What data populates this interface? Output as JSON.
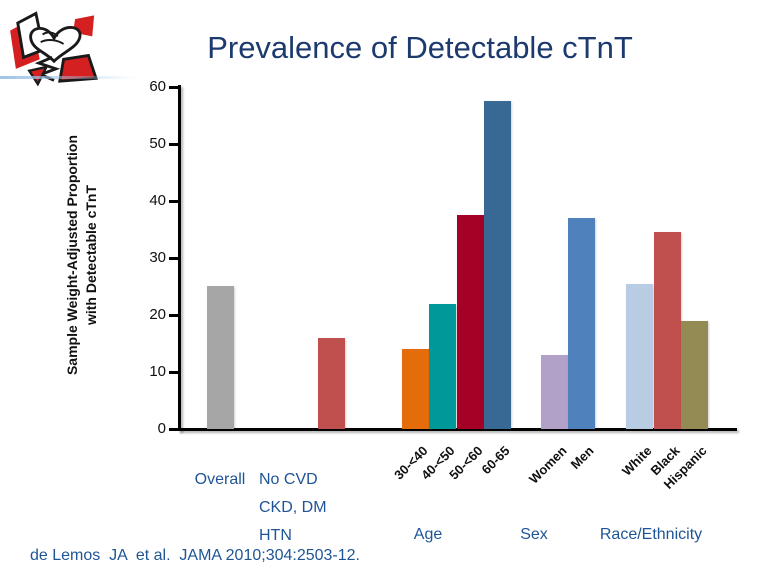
{
  "slide": {
    "title": "Prevalence of Detectable cTnT",
    "citation": "de Lemos  JA  et al.  JAMA 2010;304:2503-12.",
    "logo_name": "heart-ecg-sketch-logo"
  },
  "colors": {
    "title_text": "#1c3a6e",
    "group_label_blue": "#1f5596",
    "axis": "#000000",
    "logo_red": "#d42020",
    "logo_ink": "#1a1a1a"
  },
  "chart_data": {
    "type": "bar",
    "title": "Prevalence of Detectable cTnT",
    "ylabel": "Sample Weight-Adjusted Proportion\nwith Detectable  cTnT",
    "xlabel": "",
    "ylim": [
      0,
      60
    ],
    "yticks": [
      0,
      10,
      20,
      30,
      40,
      50,
      60
    ],
    "grid": false,
    "legend_position": "none",
    "groups": [
      {
        "label": "Overall",
        "bars": [
          {
            "category": "Overall",
            "value": 25,
            "color": "#a6a6a6"
          }
        ]
      },
      {
        "label": "No CVD\nCKD, DM\nHTN",
        "bars": [
          {
            "category": "No CVD, CKD, DM, HTN",
            "value": 16,
            "color": "#c0504d"
          }
        ]
      },
      {
        "label": "Age",
        "bars": [
          {
            "category": "30-<40",
            "value": 14,
            "color": "#e46c0a"
          },
          {
            "category": "40-<50",
            "value": 22,
            "color": "#009999"
          },
          {
            "category": "50-<60",
            "value": 37.5,
            "color": "#a50026"
          },
          {
            "category": "60-65",
            "value": 57.5,
            "color": "#376994"
          }
        ]
      },
      {
        "label": "Sex",
        "bars": [
          {
            "category": "Women",
            "value": 13,
            "color": "#b1a0c7"
          },
          {
            "category": "Men",
            "value": 37,
            "color": "#4f81bd"
          }
        ]
      },
      {
        "label": "Race/Ethnicity",
        "bars": [
          {
            "category": "White",
            "value": 25.5,
            "color": "#b8cce4"
          },
          {
            "category": "Black",
            "value": 34.5,
            "color": "#c0504d"
          },
          {
            "category": "Hispanic",
            "value": 19,
            "color": "#948a54"
          }
        ]
      }
    ]
  }
}
